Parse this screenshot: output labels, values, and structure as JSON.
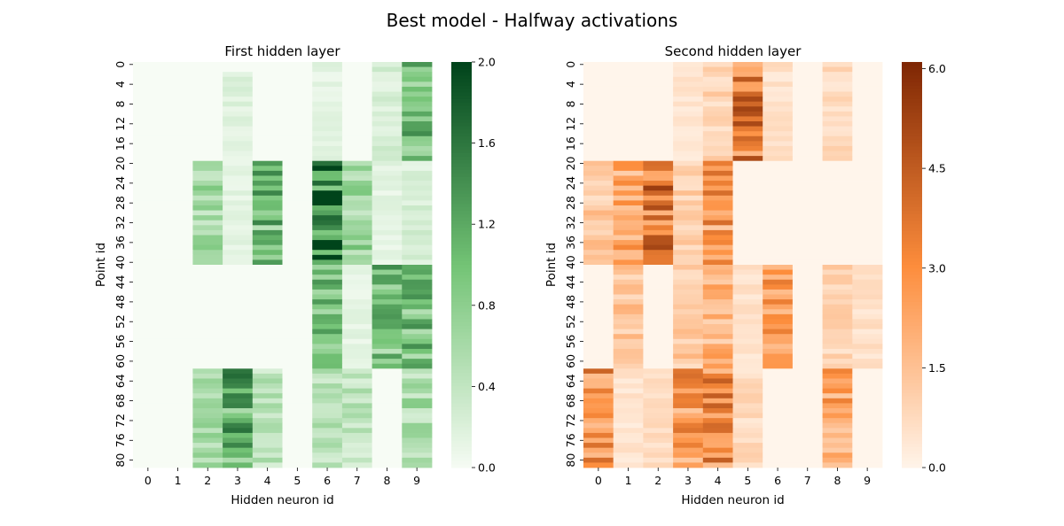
{
  "figure": {
    "suptitle": "Best model - Halfway activations"
  },
  "chart_data": [
    {
      "type": "heatmap",
      "title": "First hidden layer",
      "xlabel": "Hidden neuron id",
      "ylabel": "Point id",
      "x_ticks": [
        "0",
        "1",
        "2",
        "3",
        "4",
        "5",
        "6",
        "7",
        "8",
        "9"
      ],
      "y_ticks": [
        "0",
        "4",
        "8",
        "12",
        "16",
        "20",
        "24",
        "28",
        "32",
        "36",
        "40",
        "44",
        "48",
        "52",
        "56",
        "60",
        "64",
        "68",
        "72",
        "76",
        "80"
      ],
      "rows": 82,
      "cols": 10,
      "colormap": "Greens",
      "colors": {
        "low": "#f7fcf5",
        "mid": "#74c476",
        "high": "#00441b"
      },
      "vmin": 0,
      "vmax": 2.0,
      "colorbar_ticks": [
        "0.0",
        "0.4",
        "0.8",
        "1.2",
        "1.6",
        "2.0"
      ],
      "colorbar_values": [
        0,
        0.4,
        0.8,
        1.2,
        1.6,
        2.0
      ],
      "blocks": [
        {
          "rows": [
            0,
            19
          ],
          "cols": [
            9,
            9
          ],
          "value": 1.0
        },
        {
          "rows": [
            0,
            19
          ],
          "cols": [
            6,
            6
          ],
          "value": 0.15
        },
        {
          "rows": [
            0,
            19
          ],
          "cols": [
            8,
            8
          ],
          "value": 0.25
        },
        {
          "rows": [
            2,
            19
          ],
          "cols": [
            3,
            3
          ],
          "value": 0.2
        },
        {
          "rows": [
            20,
            40
          ],
          "cols": [
            2,
            2
          ],
          "value": 0.7
        },
        {
          "rows": [
            20,
            40
          ],
          "cols": [
            3,
            3
          ],
          "value": 0.15
        },
        {
          "rows": [
            20,
            40
          ],
          "cols": [
            4,
            4
          ],
          "value": 1.05
        },
        {
          "rows": [
            20,
            40
          ],
          "cols": [
            6,
            6
          ],
          "value": 1.6
        },
        {
          "rows": [
            20,
            40
          ],
          "cols": [
            7,
            7
          ],
          "value": 0.75
        },
        {
          "rows": [
            20,
            40
          ],
          "cols": [
            8,
            8
          ],
          "value": 0.15
        },
        {
          "rows": [
            20,
            40
          ],
          "cols": [
            9,
            9
          ],
          "value": 0.25
        },
        {
          "rows": [
            41,
            61
          ],
          "cols": [
            6,
            6
          ],
          "value": 0.95
        },
        {
          "rows": [
            41,
            61
          ],
          "cols": [
            7,
            7
          ],
          "value": 0.15
        },
        {
          "rows": [
            41,
            61
          ],
          "cols": [
            8,
            8
          ],
          "value": 1.0
        },
        {
          "rows": [
            41,
            61
          ],
          "cols": [
            9,
            9
          ],
          "value": 1.0
        },
        {
          "rows": [
            62,
            81
          ],
          "cols": [
            2,
            2
          ],
          "value": 0.6
        },
        {
          "rows": [
            62,
            81
          ],
          "cols": [
            3,
            3
          ],
          "value": 1.2
        },
        {
          "rows": [
            62,
            81
          ],
          "cols": [
            4,
            4
          ],
          "value": 0.5
        },
        {
          "rows": [
            62,
            81
          ],
          "cols": [
            6,
            6
          ],
          "value": 0.5
        },
        {
          "rows": [
            62,
            81
          ],
          "cols": [
            7,
            7
          ],
          "value": 0.45
        },
        {
          "rows": [
            62,
            81
          ],
          "cols": [
            9,
            9
          ],
          "value": 0.6
        }
      ]
    },
    {
      "type": "heatmap",
      "title": "Second hidden layer",
      "xlabel": "Hidden neuron id",
      "ylabel": "Point id",
      "x_ticks": [
        "0",
        "1",
        "2",
        "3",
        "4",
        "5",
        "6",
        "7",
        "8",
        "9"
      ],
      "y_ticks": [
        "0",
        "4",
        "8",
        "12",
        "16",
        "20",
        "24",
        "28",
        "32",
        "36",
        "40",
        "44",
        "48",
        "52",
        "56",
        "60",
        "64",
        "68",
        "72",
        "76",
        "80"
      ],
      "rows": 82,
      "cols": 10,
      "colormap": "Oranges",
      "colors": {
        "low": "#fff5eb",
        "mid": "#fd8d3c",
        "high": "#7f2704"
      },
      "vmin": 0,
      "vmax": 6.1,
      "colorbar_ticks": [
        "0.0",
        "1.5",
        "3.0",
        "4.5",
        "6.0"
      ],
      "colorbar_values": [
        0,
        1.5,
        3.0,
        4.5,
        6.0
      ],
      "blocks": [
        {
          "rows": [
            0,
            19
          ],
          "cols": [
            3,
            3
          ],
          "value": 0.5
        },
        {
          "rows": [
            0,
            19
          ],
          "cols": [
            4,
            4
          ],
          "value": 1.0
        },
        {
          "rows": [
            0,
            19
          ],
          "cols": [
            5,
            5
          ],
          "value": 3.7
        },
        {
          "rows": [
            0,
            19
          ],
          "cols": [
            6,
            6
          ],
          "value": 0.6
        },
        {
          "rows": [
            0,
            19
          ],
          "cols": [
            8,
            8
          ],
          "value": 0.8
        },
        {
          "rows": [
            20,
            40
          ],
          "cols": [
            0,
            0
          ],
          "value": 1.3
        },
        {
          "rows": [
            20,
            40
          ],
          "cols": [
            1,
            1
          ],
          "value": 2.3
        },
        {
          "rows": [
            20,
            40
          ],
          "cols": [
            2,
            2
          ],
          "value": 4.1
        },
        {
          "rows": [
            20,
            40
          ],
          "cols": [
            3,
            3
          ],
          "value": 1.1
        },
        {
          "rows": [
            20,
            40
          ],
          "cols": [
            4,
            4
          ],
          "value": 2.8
        },
        {
          "rows": [
            41,
            61
          ],
          "cols": [
            1,
            1
          ],
          "value": 1.4
        },
        {
          "rows": [
            41,
            61
          ],
          "cols": [
            3,
            3
          ],
          "value": 1.3
        },
        {
          "rows": [
            41,
            61
          ],
          "cols": [
            4,
            4
          ],
          "value": 2.0
        },
        {
          "rows": [
            41,
            61
          ],
          "cols": [
            5,
            5
          ],
          "value": 0.6
        },
        {
          "rows": [
            41,
            61
          ],
          "cols": [
            6,
            6
          ],
          "value": 2.5
        },
        {
          "rows": [
            41,
            61
          ],
          "cols": [
            8,
            8
          ],
          "value": 1.0
        },
        {
          "rows": [
            41,
            61
          ],
          "cols": [
            9,
            9
          ],
          "value": 0.6
        },
        {
          "rows": [
            62,
            81
          ],
          "cols": [
            0,
            0
          ],
          "value": 3.4
        },
        {
          "rows": [
            62,
            81
          ],
          "cols": [
            1,
            1
          ],
          "value": 0.5
        },
        {
          "rows": [
            62,
            81
          ],
          "cols": [
            2,
            2
          ],
          "value": 0.7
        },
        {
          "rows": [
            62,
            81
          ],
          "cols": [
            3,
            3
          ],
          "value": 2.8
        },
        {
          "rows": [
            62,
            81
          ],
          "cols": [
            4,
            4
          ],
          "value": 3.4
        },
        {
          "rows": [
            62,
            81
          ],
          "cols": [
            5,
            5
          ],
          "value": 0.8
        },
        {
          "rows": [
            62,
            81
          ],
          "cols": [
            8,
            8
          ],
          "value": 2.5
        }
      ]
    }
  ]
}
